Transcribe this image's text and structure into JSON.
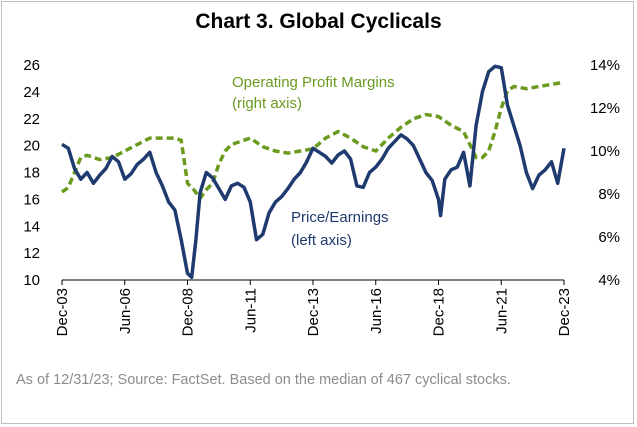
{
  "title": "Chart 3. Global Cyclicals",
  "footnote": "As of 12/31/23; Source: FactSet.  Based on the median of 467 cyclical stocks.",
  "colors": {
    "pe": "#1f3a6e",
    "margin": "#6b9a1f"
  },
  "chart_data": {
    "type": "line",
    "x_ticks": [
      "Dec-03",
      "Jun-06",
      "Dec-08",
      "Jun-11",
      "Dec-13",
      "Jun-16",
      "Dec-18",
      "Jun-21",
      "Dec-23"
    ],
    "x_range": [
      "2003-12",
      "2023-12"
    ],
    "y_left": {
      "ticks": [
        "10",
        "12",
        "14",
        "16",
        "18",
        "20",
        "22",
        "24",
        "26"
      ],
      "range": [
        10,
        26
      ]
    },
    "y_right": {
      "ticks": [
        "4%",
        "6%",
        "8%",
        "10%",
        "12%",
        "14%"
      ],
      "range": [
        4,
        14
      ]
    },
    "annotations": {
      "margin_label": [
        "Operating  Profit Margins",
        "(right axis)"
      ],
      "pe_label": [
        "Price/Earnings",
        "(left axis)"
      ]
    },
    "series": [
      {
        "name": "Price/Earnings (left axis)",
        "axis": "left",
        "style": "solid",
        "points": [
          [
            "2003-12",
            20.1
          ],
          [
            "2004-03",
            19.8
          ],
          [
            "2004-06",
            18.3
          ],
          [
            "2004-09",
            17.5
          ],
          [
            "2004-12",
            18.0
          ],
          [
            "2005-03",
            17.2
          ],
          [
            "2005-06",
            17.8
          ],
          [
            "2005-09",
            18.3
          ],
          [
            "2005-12",
            19.2
          ],
          [
            "2006-03",
            18.8
          ],
          [
            "2006-06",
            17.5
          ],
          [
            "2006-09",
            17.9
          ],
          [
            "2006-12",
            18.6
          ],
          [
            "2007-03",
            19.0
          ],
          [
            "2007-06",
            19.5
          ],
          [
            "2007-09",
            18.0
          ],
          [
            "2007-12",
            17.0
          ],
          [
            "2008-03",
            15.8
          ],
          [
            "2008-06",
            15.2
          ],
          [
            "2008-09",
            13.0
          ],
          [
            "2008-12",
            10.5
          ],
          [
            "2009-02",
            10.2
          ],
          [
            "2009-04",
            13.0
          ],
          [
            "2009-06",
            16.5
          ],
          [
            "2009-09",
            18.0
          ],
          [
            "2009-12",
            17.6
          ],
          [
            "2010-03",
            16.8
          ],
          [
            "2010-06",
            16.0
          ],
          [
            "2010-09",
            17.0
          ],
          [
            "2010-12",
            17.2
          ],
          [
            "2011-03",
            16.9
          ],
          [
            "2011-06",
            15.8
          ],
          [
            "2011-09",
            13.0
          ],
          [
            "2011-12",
            13.4
          ],
          [
            "2012-03",
            15.0
          ],
          [
            "2012-06",
            15.8
          ],
          [
            "2012-09",
            16.2
          ],
          [
            "2012-12",
            16.8
          ],
          [
            "2013-03",
            17.5
          ],
          [
            "2013-06",
            18.0
          ],
          [
            "2013-09",
            18.8
          ],
          [
            "2013-12",
            19.8
          ],
          [
            "2014-03",
            19.5
          ],
          [
            "2014-06",
            19.2
          ],
          [
            "2014-09",
            18.7
          ],
          [
            "2014-12",
            19.3
          ],
          [
            "2015-03",
            19.6
          ],
          [
            "2015-06",
            19.0
          ],
          [
            "2015-09",
            17.0
          ],
          [
            "2015-12",
            16.9
          ],
          [
            "2016-03",
            18.0
          ],
          [
            "2016-06",
            18.4
          ],
          [
            "2016-09",
            19.0
          ],
          [
            "2016-12",
            19.8
          ],
          [
            "2017-03",
            20.3
          ],
          [
            "2017-06",
            20.8
          ],
          [
            "2017-09",
            20.5
          ],
          [
            "2017-12",
            20.0
          ],
          [
            "2018-03",
            19.0
          ],
          [
            "2018-06",
            18.0
          ],
          [
            "2018-09",
            17.4
          ],
          [
            "2018-12",
            16.0
          ],
          [
            "2019-01",
            14.8
          ],
          [
            "2019-03",
            17.5
          ],
          [
            "2019-06",
            18.2
          ],
          [
            "2019-09",
            18.4
          ],
          [
            "2019-12",
            19.5
          ],
          [
            "2020-03",
            17.0
          ],
          [
            "2020-06",
            21.5
          ],
          [
            "2020-09",
            24.0
          ],
          [
            "2020-12",
            25.5
          ],
          [
            "2021-03",
            25.9
          ],
          [
            "2021-06",
            25.8
          ],
          [
            "2021-09",
            23.0
          ],
          [
            "2021-12",
            21.5
          ],
          [
            "2022-03",
            20.0
          ],
          [
            "2022-06",
            18.0
          ],
          [
            "2022-09",
            16.8
          ],
          [
            "2022-12",
            17.8
          ],
          [
            "2023-03",
            18.2
          ],
          [
            "2023-06",
            18.8
          ],
          [
            "2023-09",
            17.2
          ],
          [
            "2023-12",
            19.8
          ]
        ]
      },
      {
        "name": "Operating Profit Margins (right axis)",
        "axis": "right",
        "style": "dashed",
        "points": [
          [
            "2003-12",
            8.1
          ],
          [
            "2004-03",
            8.3
          ],
          [
            "2004-06",
            9.0
          ],
          [
            "2004-09",
            9.7
          ],
          [
            "2004-12",
            9.8
          ],
          [
            "2005-06",
            9.6
          ],
          [
            "2005-12",
            9.7
          ],
          [
            "2006-06",
            10.0
          ],
          [
            "2006-12",
            10.3
          ],
          [
            "2007-06",
            10.6
          ],
          [
            "2007-12",
            10.6
          ],
          [
            "2008-06",
            10.6
          ],
          [
            "2008-09",
            10.5
          ],
          [
            "2008-12",
            8.5
          ],
          [
            "2009-03",
            8.2
          ],
          [
            "2009-06",
            7.8
          ],
          [
            "2009-09",
            8.2
          ],
          [
            "2009-12",
            8.5
          ],
          [
            "2010-03",
            9.4
          ],
          [
            "2010-06",
            10.0
          ],
          [
            "2010-09",
            10.3
          ],
          [
            "2010-12",
            10.4
          ],
          [
            "2011-06",
            10.6
          ],
          [
            "2011-12",
            10.2
          ],
          [
            "2012-06",
            10.0
          ],
          [
            "2012-12",
            9.9
          ],
          [
            "2013-06",
            10.0
          ],
          [
            "2013-12",
            10.1
          ],
          [
            "2014-06",
            10.6
          ],
          [
            "2014-12",
            10.9
          ],
          [
            "2015-06",
            10.6
          ],
          [
            "2015-12",
            10.2
          ],
          [
            "2016-06",
            10.0
          ],
          [
            "2016-12",
            10.6
          ],
          [
            "2017-06",
            11.1
          ],
          [
            "2017-12",
            11.5
          ],
          [
            "2018-06",
            11.7
          ],
          [
            "2018-12",
            11.6
          ],
          [
            "2019-06",
            11.2
          ],
          [
            "2019-12",
            10.9
          ],
          [
            "2020-03",
            10.3
          ],
          [
            "2020-06",
            9.7
          ],
          [
            "2020-09",
            9.7
          ],
          [
            "2020-12",
            10.0
          ],
          [
            "2021-03",
            10.9
          ],
          [
            "2021-06",
            12.0
          ],
          [
            "2021-09",
            12.8
          ],
          [
            "2021-12",
            13.0
          ],
          [
            "2022-06",
            12.9
          ],
          [
            "2022-12",
            13.0
          ],
          [
            "2023-06",
            13.1
          ],
          [
            "2023-12",
            13.2
          ]
        ]
      }
    ]
  }
}
